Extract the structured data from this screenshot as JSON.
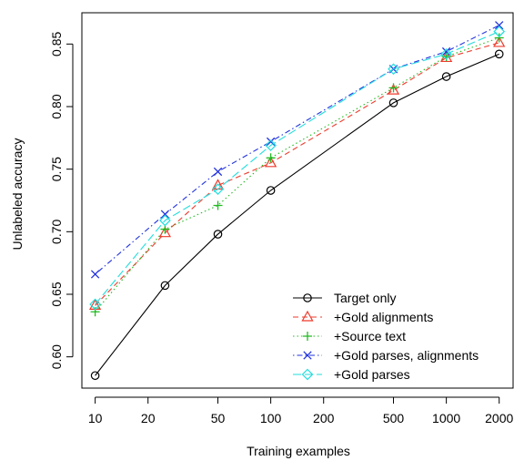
{
  "chart_data": {
    "type": "line",
    "title": "",
    "xlabel": "Training examples",
    "ylabel": "Unlabeled accuracy",
    "xscale": "log",
    "xlim": [
      8.4,
      2400
    ],
    "ylim": [
      0.575,
      0.875
    ],
    "xticks": [
      10,
      20,
      50,
      100,
      200,
      500,
      1000,
      2000
    ],
    "xtick_labels": [
      "10",
      "20",
      "50",
      "100",
      "200",
      "500",
      "1000",
      "2000"
    ],
    "yticks": [
      0.6,
      0.65,
      0.7,
      0.75,
      0.8,
      0.85
    ],
    "ytick_labels": [
      "0.60",
      "0.65",
      "0.70",
      "0.75",
      "0.80",
      "0.85"
    ],
    "grid": false,
    "legend_position": "bottom-right",
    "x": [
      10,
      25,
      50,
      100,
      500,
      1000,
      2000
    ],
    "series": [
      {
        "name": "Target only",
        "color": "#000000",
        "dash": "solid",
        "marker": "circle",
        "values": [
          0.585,
          0.657,
          0.698,
          0.733,
          0.803,
          0.824,
          0.842
        ]
      },
      {
        "name": "+Gold alignments",
        "color": "#ee3b2c",
        "dash": "dashed",
        "marker": "triangle",
        "values": [
          0.641,
          0.699,
          0.737,
          0.755,
          0.813,
          0.839,
          0.851
        ]
      },
      {
        "name": "+Source text",
        "color": "#22bb22",
        "dash": "dotted",
        "marker": "plus",
        "values": [
          0.636,
          0.702,
          0.721,
          0.759,
          0.815,
          0.84,
          0.855
        ]
      },
      {
        "name": "+Gold parses, alignments",
        "color": "#2233dd",
        "dash": "dotdash",
        "marker": "x",
        "values": [
          0.666,
          0.714,
          0.748,
          0.772,
          0.83,
          0.844,
          0.865
        ]
      },
      {
        "name": "+Gold parses",
        "color": "#22dddd",
        "dash": "longdash",
        "marker": "diamond",
        "values": [
          0.642,
          0.709,
          0.734,
          0.769,
          0.83,
          0.842,
          0.86
        ]
      }
    ]
  }
}
